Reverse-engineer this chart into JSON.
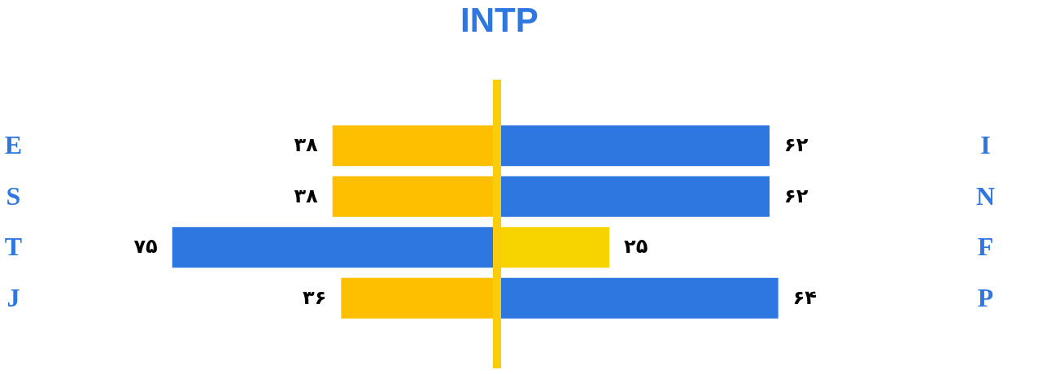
{
  "chart_data": [
    {
      "type": "bar",
      "title": "INTP",
      "orientation": "horizontal",
      "categories": [
        "E",
        "S",
        "T",
        "J"
      ],
      "values": [
        38,
        38,
        75,
        36
      ],
      "colors": [
        "#fdbf00",
        "#fdbf00",
        "#2f77e0",
        "#fdbf00"
      ],
      "value_labels": [
        "۳۸",
        "۳۸",
        "۷۵",
        "۳۶"
      ],
      "ref_lines": [
        {
          "axis": "x",
          "value": 0,
          "color": "#f9cd0b"
        }
      ],
      "grid": false
    },
    {
      "type": "bar",
      "orientation": "horizontal",
      "categories": [
        "I",
        "N",
        "F",
        "P"
      ],
      "values": [
        62,
        62,
        25,
        64
      ],
      "colors": [
        "#2f77e0",
        "#2f77e0",
        "#f7d300",
        "#2f77e0"
      ],
      "value_labels": [
        "۶۲",
        "۶۲",
        "۲۵",
        "۶۴"
      ],
      "grid": false
    }
  ]
}
